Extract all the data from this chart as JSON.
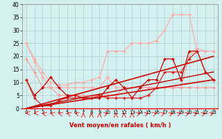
{
  "xlabel": "Vent moyen/en rafales ( km/h )",
  "xlim": [
    -0.5,
    23.5
  ],
  "ylim": [
    0,
    40
  ],
  "xticks": [
    0,
    1,
    2,
    3,
    4,
    5,
    6,
    7,
    8,
    9,
    10,
    11,
    12,
    13,
    14,
    15,
    16,
    17,
    18,
    19,
    20,
    21,
    22,
    23
  ],
  "yticks": [
    0,
    5,
    10,
    15,
    20,
    25,
    30,
    35,
    40
  ],
  "bg_color": "#d4f0ee",
  "grid_color": "#b0cccc",
  "lines": [
    {
      "x": [
        0,
        1,
        2,
        3,
        4,
        5,
        6,
        7,
        8,
        9,
        10,
        11,
        12,
        13,
        14,
        15,
        16,
        17,
        18,
        19,
        20,
        21,
        22,
        23
      ],
      "y": [
        25,
        19,
        14,
        10,
        9,
        9,
        10,
        10,
        11,
        12,
        22,
        22,
        22,
        25,
        25,
        25,
        26,
        30,
        36,
        36,
        36,
        22,
        22,
        22
      ],
      "color": "#ffaaaa",
      "lw": 0.8,
      "marker": "D",
      "ms": 2.0
    },
    {
      "x": [
        0,
        1,
        2,
        3,
        4,
        5,
        6,
        7,
        8,
        9,
        10,
        11,
        12,
        13,
        14,
        15,
        16,
        17,
        18,
        19,
        20,
        21,
        22,
        23
      ],
      "y": [
        25,
        18,
        12,
        8,
        8,
        8,
        8,
        8,
        8,
        8,
        12,
        8,
        8,
        8,
        8,
        8,
        8,
        8,
        8,
        8,
        20,
        23,
        22,
        22
      ],
      "color": "#ffaaaa",
      "lw": 0.8,
      "marker": "D",
      "ms": 2.0
    },
    {
      "x": [
        0,
        1,
        2,
        3,
        4,
        5,
        6,
        7,
        8,
        9,
        10,
        11,
        12,
        13,
        14,
        15,
        16,
        17,
        18,
        19,
        20,
        21,
        22,
        23
      ],
      "y": [
        19,
        14,
        8,
        8,
        5,
        5,
        5,
        5,
        5,
        5,
        5,
        5,
        8,
        8,
        8,
        8,
        8,
        8,
        8,
        8,
        8,
        8,
        8,
        8
      ],
      "color": "#ff9999",
      "lw": 0.8,
      "marker": "D",
      "ms": 2.0
    },
    {
      "x": [
        0,
        1,
        2,
        3,
        4,
        5,
        6,
        7,
        8,
        9,
        10,
        11,
        12,
        13,
        14,
        15,
        16,
        17,
        18,
        19,
        20,
        21,
        22,
        23
      ],
      "y": [
        11,
        5,
        8,
        12,
        8,
        5,
        5,
        4,
        4,
        4,
        8,
        11,
        8,
        4,
        8,
        11,
        11,
        19,
        19,
        11,
        22,
        22,
        14,
        11
      ],
      "color": "#cc0000",
      "lw": 0.9,
      "marker": "D",
      "ms": 2.0
    },
    {
      "x": [
        0,
        1,
        2,
        3,
        4,
        5,
        6,
        7,
        8,
        9,
        10,
        11,
        12,
        13,
        14,
        15,
        16,
        17,
        18,
        19,
        20,
        21,
        22,
        23
      ],
      "y": [
        11,
        4,
        1,
        1,
        3,
        4,
        4,
        4,
        4,
        5,
        4,
        4,
        4,
        4,
        4,
        5,
        8,
        14,
        14,
        14,
        19,
        22,
        14,
        11
      ],
      "color": "#dd2222",
      "lw": 0.9,
      "marker": "D",
      "ms": 2.0
    },
    {
      "x": [
        0,
        23
      ],
      "y": [
        0,
        20
      ],
      "color": "#cc0000",
      "lw": 1.2,
      "marker": null,
      "ms": 0
    },
    {
      "x": [
        0,
        23
      ],
      "y": [
        0,
        11
      ],
      "color": "#cc0000",
      "lw": 1.2,
      "marker": null,
      "ms": 0
    },
    {
      "x": [
        0,
        23
      ],
      "y": [
        0,
        14
      ],
      "color": "#bb0000",
      "lw": 1.0,
      "marker": null,
      "ms": 0
    }
  ],
  "arrow_directions": [
    180,
    180,
    135,
    135,
    135,
    135,
    135,
    90,
    90,
    90,
    45,
    90,
    90,
    90,
    45,
    45,
    45,
    45,
    45,
    45,
    45,
    45,
    45,
    45
  ]
}
